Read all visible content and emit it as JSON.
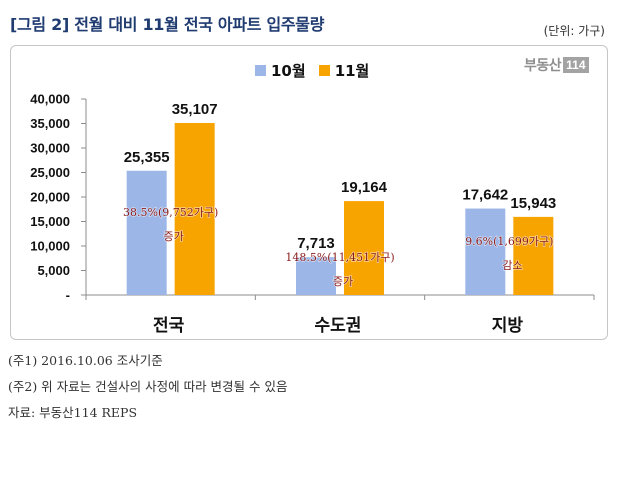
{
  "chart_data": {
    "type": "bar",
    "title": "[그림 2] 전월 대비 11월 전국 아파트 입주물량",
    "unit": "(단위: 가구)",
    "categories": [
      "전국",
      "수도권",
      "지방"
    ],
    "series": [
      {
        "name": "10월",
        "values": [
          25355,
          7713,
          17642
        ],
        "labels": [
          "25,355",
          "7,713",
          "17,642"
        ],
        "color": "#9BB6E7"
      },
      {
        "name": "11월",
        "values": [
          35107,
          19164,
          15943
        ],
        "labels": [
          "35,107",
          "19,164",
          "15,943"
        ],
        "color": "#F7A400"
      }
    ],
    "yticks": [
      0,
      5000,
      10000,
      15000,
      20000,
      25000,
      30000,
      35000,
      40000
    ],
    "ytick_labels": [
      "-",
      "5,000",
      "10,000",
      "15,000",
      "20,000",
      "25,000",
      "30,000",
      "35,000",
      "40,000"
    ],
    "ylim": [
      0,
      40000
    ],
    "legend": "top-center",
    "grid": false,
    "annotations": [
      {
        "text": "38.5%(9,752가구)",
        "label": "증가"
      },
      {
        "text": "148.5%(11,451가구)",
        "label": "증가"
      },
      {
        "text": "9.6%(1,699가구)",
        "label": "감소"
      }
    ],
    "annotation_color": "#8B1A1A"
  },
  "logo": {
    "name": "부동산",
    "number": "114"
  },
  "notes": [
    "(주1) 2016.10.06 조사기준",
    "(주2) 위 자료는 건설사의 사정에 따라 변경될 수 있음",
    "자료: 부동산114 REPS"
  ]
}
